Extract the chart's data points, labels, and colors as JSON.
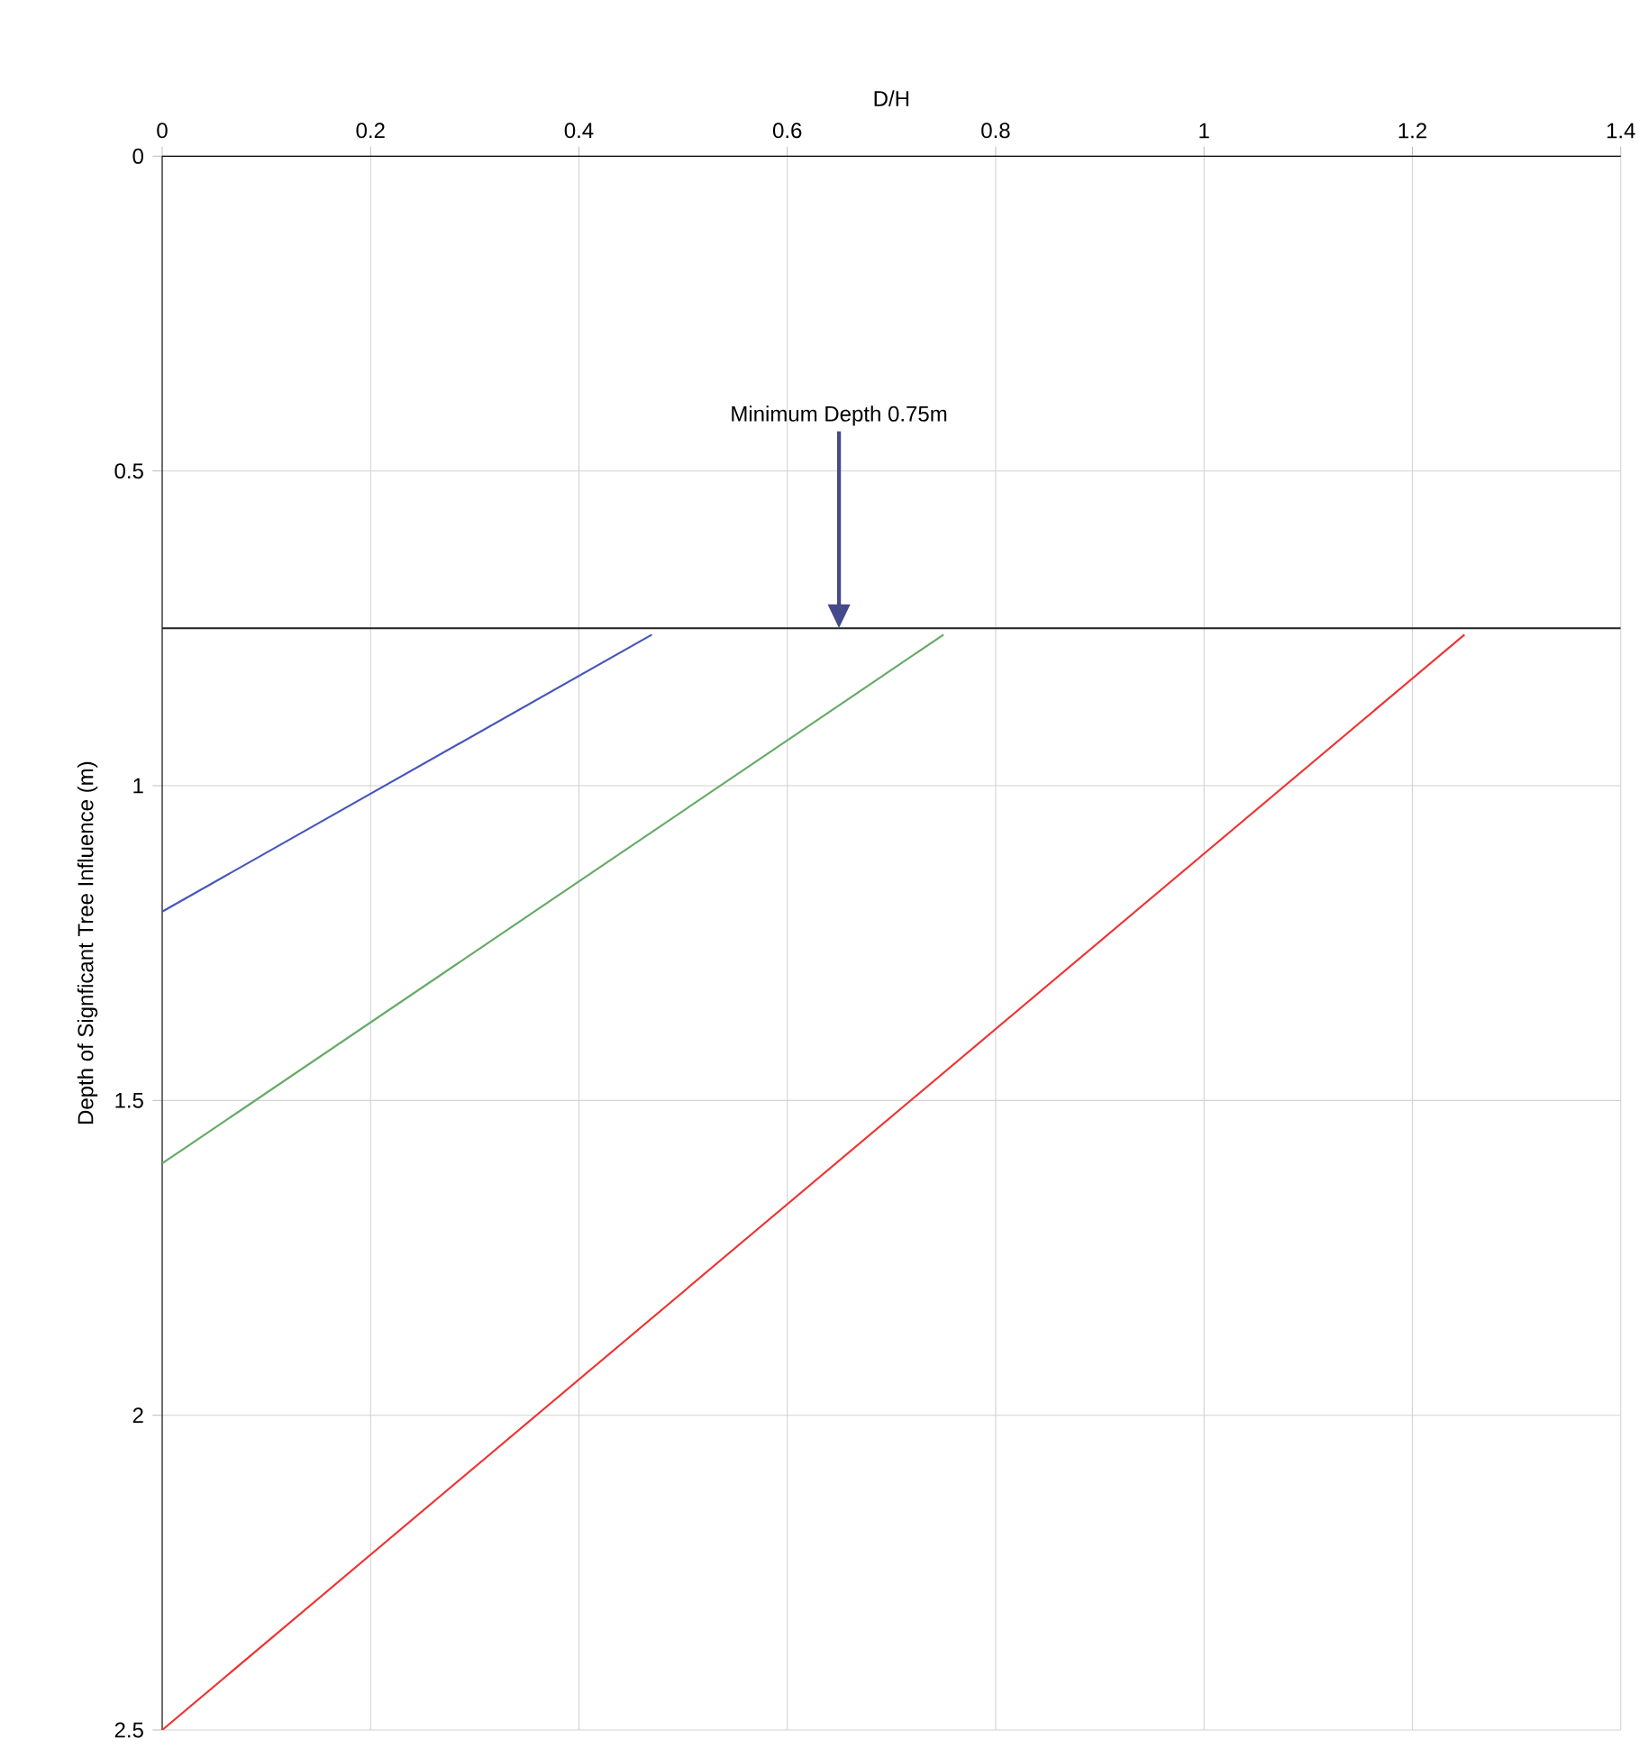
{
  "chart_data": {
    "type": "line",
    "xlabel": "D/H",
    "ylabel": "Depth of Signficant Tree Influence (m)",
    "xlim": [
      0,
      1.4
    ],
    "xticks": [
      0,
      0.2,
      0.4,
      0.6,
      0.8,
      1,
      1.2,
      1.4
    ],
    "ylim": [
      2.5,
      0
    ],
    "yticks": [
      0,
      0.5,
      1,
      1.5,
      2,
      2.5
    ],
    "grid": true,
    "series": [
      {
        "color": "#4455bb",
        "x": [
          0,
          0.47
        ],
        "values": [
          1.2,
          0.76
        ]
      },
      {
        "color": "#66aa66",
        "x": [
          0,
          0.75
        ],
        "values": [
          1.6,
          0.76
        ]
      },
      {
        "color": "#ee3333",
        "x": [
          0,
          1.25
        ],
        "values": [
          2.5,
          0.76
        ]
      }
    ],
    "ref_lines": [
      {
        "axis": "y",
        "value": 0.75,
        "color": "#222222",
        "label": "Minimum Depth 0.75m"
      }
    ]
  }
}
